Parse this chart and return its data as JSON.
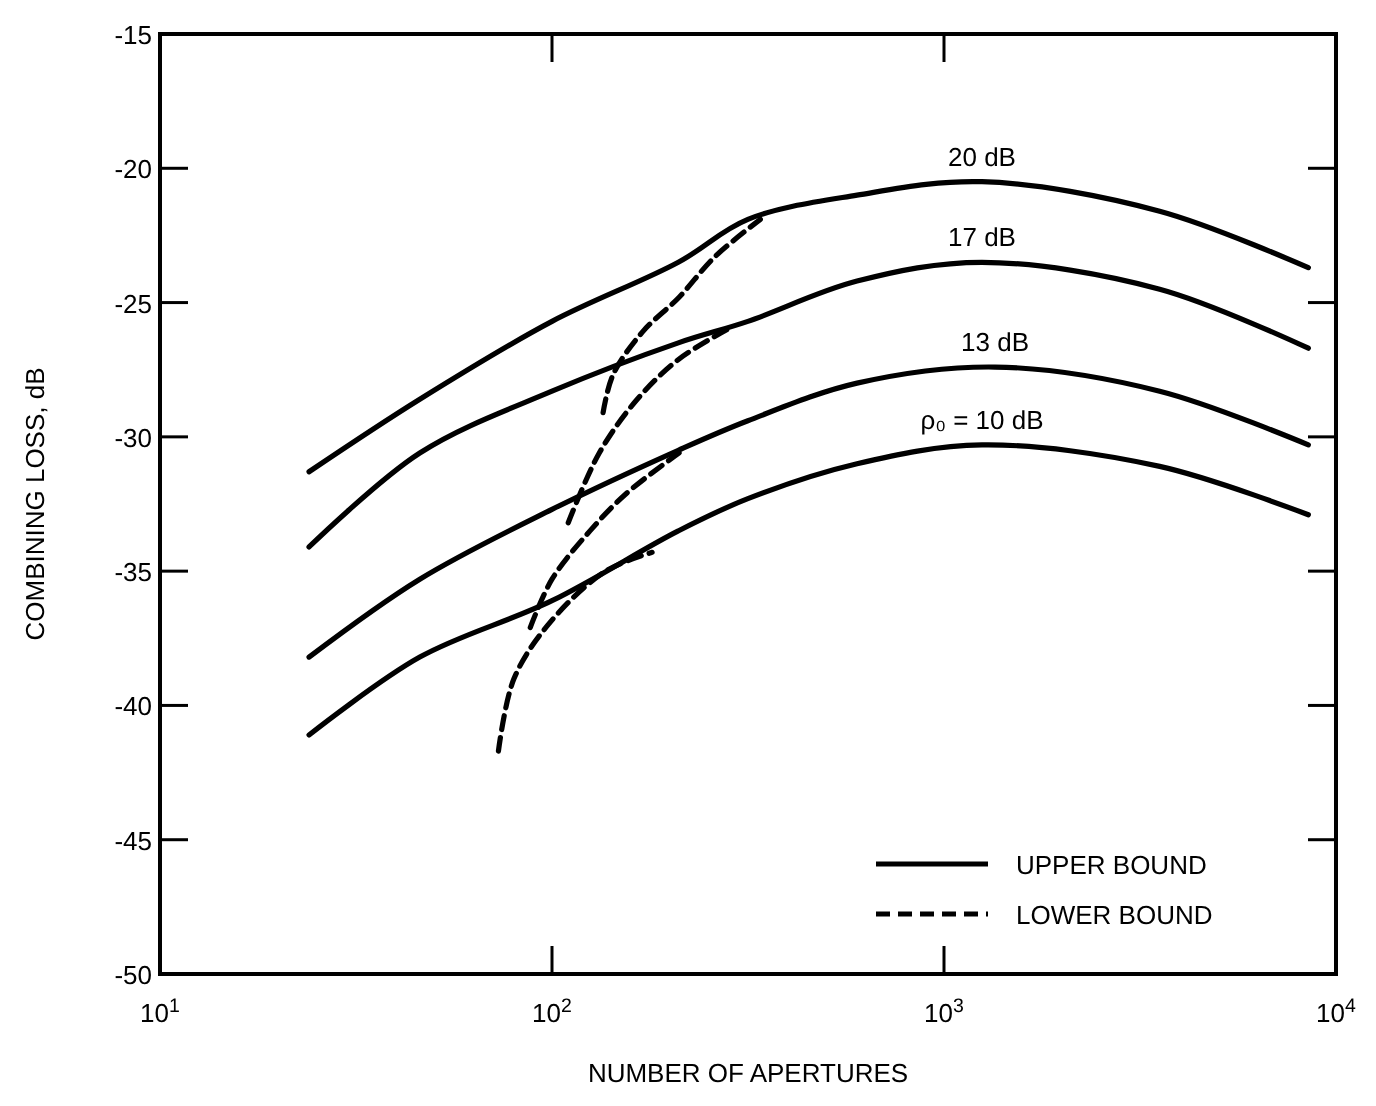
{
  "chart_data": {
    "type": "line",
    "xlabel": "NUMBER OF APERTURES",
    "ylabel": "COMBINING LOSS, dB",
    "log": "x",
    "xlim": [
      10,
      10000
    ],
    "ylim": [
      -50,
      -15
    ],
    "xticks": [
      {
        "value": 10,
        "label": "10$^{1}$"
      },
      {
        "value": 100,
        "label": "10$^{2}$"
      },
      {
        "value": 1000,
        "label": "10$^{3}$"
      },
      {
        "value": 10000,
        "label": "10$^{4}$"
      }
    ],
    "yticks": [
      -15,
      -20,
      -25,
      -30,
      -35,
      -40,
      -45,
      -50
    ],
    "grid": false,
    "legend": "bottom right",
    "marker": "none",
    "annotations": [
      "20 dB",
      "17 dB",
      "13 dB",
      "ρ₀ = 10 dB"
    ],
    "series": [
      {
        "name": "UPPER BOUND",
        "color": "#000000",
        "line_style": "solid",
        "x": [
          24,
          46,
          100,
          210,
          316,
          600,
          1250,
          3550,
          8500
        ],
        "values": [
          -31.3,
          -28.6,
          -25.7,
          -23.5,
          -21.9,
          -21.0,
          -20.5,
          -21.6,
          -23.7
        ]
      },
      {
        "color": "#000000",
        "line_style": "solid",
        "x": [
          24,
          46,
          100,
          210,
          316,
          600,
          1250,
          3550,
          8500
        ],
        "values": [
          -34.1,
          -30.6,
          -28.3,
          -26.5,
          -25.7,
          -24.2,
          -23.5,
          -24.5,
          -26.7
        ]
      },
      {
        "color": "#000000",
        "line_style": "solid",
        "x": [
          24,
          46,
          100,
          210,
          316,
          600,
          1350,
          3550,
          8500
        ],
        "values": [
          -38.2,
          -35.3,
          -32.7,
          -30.5,
          -29.4,
          -28.0,
          -27.4,
          -28.3,
          -30.3
        ]
      },
      {
        "color": "#000000",
        "line_style": "solid",
        "x": [
          24,
          46,
          100,
          210,
          316,
          600,
          1250,
          3550,
          8500
        ],
        "values": [
          -41.1,
          -38.2,
          -36.1,
          -33.5,
          -32.3,
          -31.0,
          -30.3,
          -31.1,
          -32.9
        ]
      },
      {
        "name": "LOWER BOUND",
        "color": "#000000",
        "line_style": "dashed",
        "x": [
          135,
          143,
          170,
          211,
          260,
          340
        ],
        "values": [
          -29.1,
          -27.7,
          -26.1,
          -24.8,
          -23.3,
          -21.9
        ]
      },
      {
        "color": "#000000",
        "line_style": "dashed",
        "x": [
          110,
          132,
          165,
          211,
          280
        ],
        "values": [
          -33.2,
          -30.6,
          -28.6,
          -27.1,
          -26.0
        ]
      },
      {
        "color": "#000000",
        "line_style": "dashed",
        "x": [
          88,
          100,
          125,
          155,
          211
        ],
        "values": [
          -37.1,
          -35.3,
          -33.5,
          -32.1,
          -30.6
        ]
      },
      {
        "color": "#000000",
        "line_style": "dashed",
        "x": [
          73,
          80,
          99,
          137,
          180
        ],
        "values": [
          -41.7,
          -39.0,
          -36.9,
          -35.0,
          -34.3
        ]
      }
    ]
  }
}
